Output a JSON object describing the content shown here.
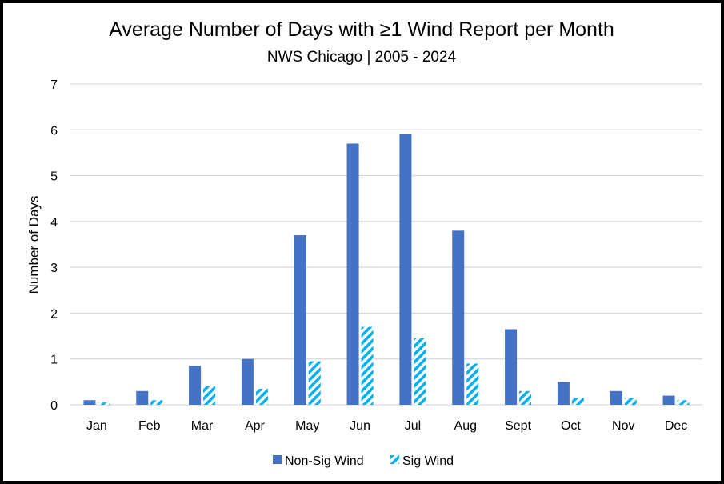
{
  "chart_data": {
    "type": "bar",
    "title": "Average Number of Days with ≥1 Wind Report per Month",
    "subtitle": "NWS Chicago | 2005 - 2024",
    "xlabel": "",
    "ylabel": "Number of Days",
    "ylim": [
      0,
      7
    ],
    "yticks": [
      "0",
      "1",
      "2",
      "3",
      "4",
      "5",
      "6",
      "7"
    ],
    "grid": true,
    "legend_position": "bottom",
    "categories": [
      "Jan",
      "Feb",
      "Mar",
      "Apr",
      "May",
      "Jun",
      "Jul",
      "Aug",
      "Sept",
      "Oct",
      "Nov",
      "Dec"
    ],
    "series": [
      {
        "name": "Non-Sig Wind",
        "color": "#4472C4",
        "pattern": "solid",
        "values": [
          0.1,
          0.3,
          0.85,
          1.0,
          3.7,
          5.7,
          5.9,
          3.8,
          1.65,
          0.5,
          0.3,
          0.2
        ]
      },
      {
        "name": "Sig Wind",
        "color": "#00B0F0",
        "pattern": "diagonal-stripes",
        "values": [
          0.05,
          0.1,
          0.4,
          0.35,
          0.95,
          1.7,
          1.45,
          0.9,
          0.3,
          0.15,
          0.15,
          0.1
        ]
      }
    ]
  }
}
